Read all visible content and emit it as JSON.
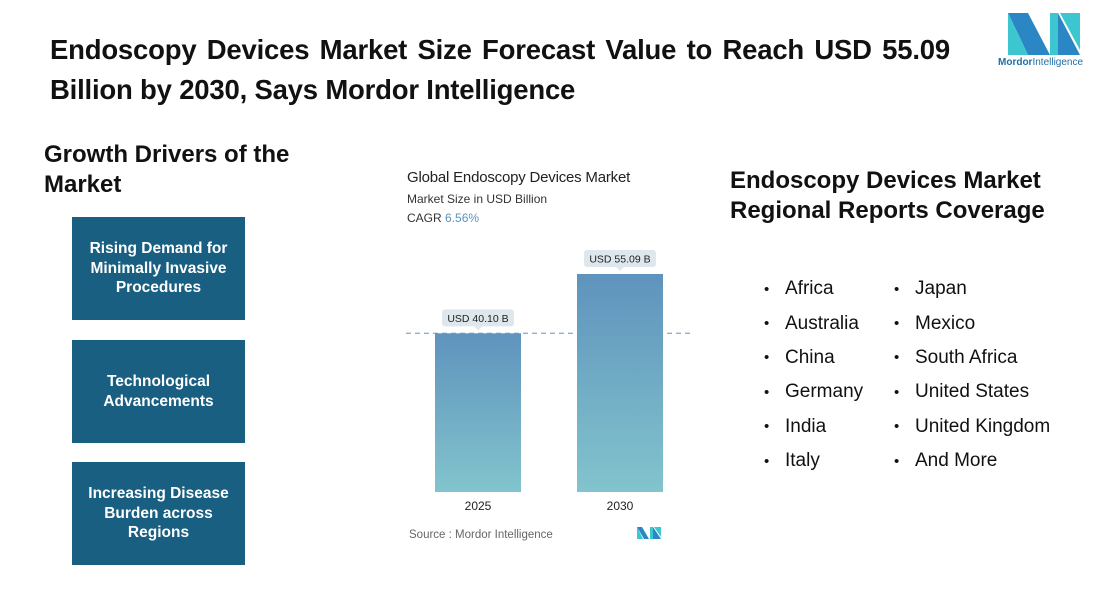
{
  "header": {
    "title": "Endoscopy Devices Market Size Forecast Value to Reach USD 55.09 Billion by 2030, Says Mordor Intelligence",
    "logo_word1": "Mordor",
    "logo_word2": "Intelligence"
  },
  "drivers": {
    "heading": "Growth Drivers of the Market",
    "items": [
      "Rising Demand for Minimally Invasive Procedures",
      "Technological Advancements",
      "Increasing Disease Burden across Regions"
    ]
  },
  "chart_data": {
    "type": "bar",
    "title": "Global Endoscopy Devices Market",
    "subtitle": "Market Size in USD Billion",
    "cagr_label": "CAGR",
    "cagr_value": "6.56%",
    "categories": [
      "2025",
      "2030"
    ],
    "values": [
      40.1,
      55.09
    ],
    "data_labels": [
      "USD 40.10 B",
      "USD 55.09 B"
    ],
    "ylim": [
      0,
      60
    ],
    "reference_line": 40.1,
    "grid": false,
    "source": "Source :  Mordor Intelligence"
  },
  "regions": {
    "heading": "Endoscopy Devices Market Regional Reports Coverage",
    "bullet": "•",
    "column1": [
      "Africa",
      "Australia",
      "China",
      "Germany",
      "India",
      "Italy"
    ],
    "column2": [
      "Japan",
      "Mexico",
      "South Africa",
      "United States",
      "United Kingdom",
      "And More"
    ]
  },
  "colors": {
    "box": "#185f82",
    "bar_top": "#5f93bd",
    "bar_bottom": "#82c4cd",
    "logo_teal": "#3cc7d0",
    "logo_blue": "#2a86c4"
  }
}
